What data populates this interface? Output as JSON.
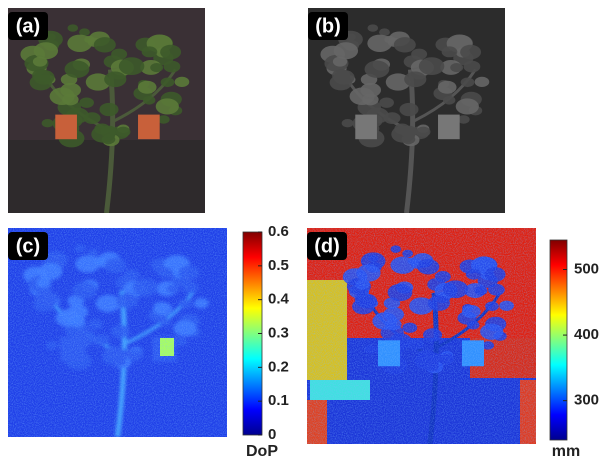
{
  "panels": [
    {
      "label": "(a)"
    },
    {
      "label": "(b)"
    },
    {
      "label": "(c)",
      "colorbar": {
        "label": "DoP",
        "lim": [
          0,
          0.6
        ],
        "ticks": [
          0,
          0.1,
          0.2,
          0.3,
          0.4,
          0.5,
          0.6
        ]
      }
    },
    {
      "label": "(d)",
      "colorbar": {
        "label": "mm",
        "lim": [
          240,
          545
        ],
        "ticks": [
          300,
          400,
          500
        ]
      }
    }
  ]
}
